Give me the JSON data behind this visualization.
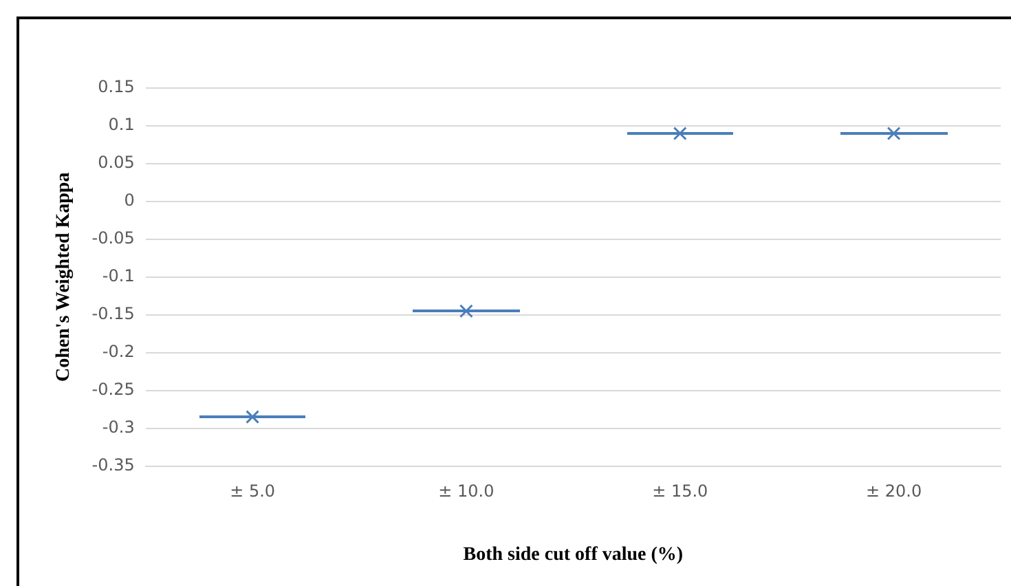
{
  "chart_data": {
    "type": "scatter",
    "xlabel": "Both side cut off value (%)",
    "ylabel": "Cohen's Weighted Kappa",
    "categories": [
      "± 5.0",
      "± 10.0",
      "± 15.0",
      "± 20.0"
    ],
    "series": [
      {
        "color": "#4a7ebb",
        "values": [
          -0.285,
          -0.145,
          0.09,
          0.09
        ]
      }
    ],
    "ylim": [
      -0.35,
      0.15
    ],
    "yticks": [
      -0.35,
      -0.3,
      -0.25,
      -0.2,
      -0.15,
      -0.1,
      -0.05,
      0,
      0.05,
      0.1,
      0.15
    ],
    "grid": "y",
    "legend": false,
    "marker": "cross"
  }
}
